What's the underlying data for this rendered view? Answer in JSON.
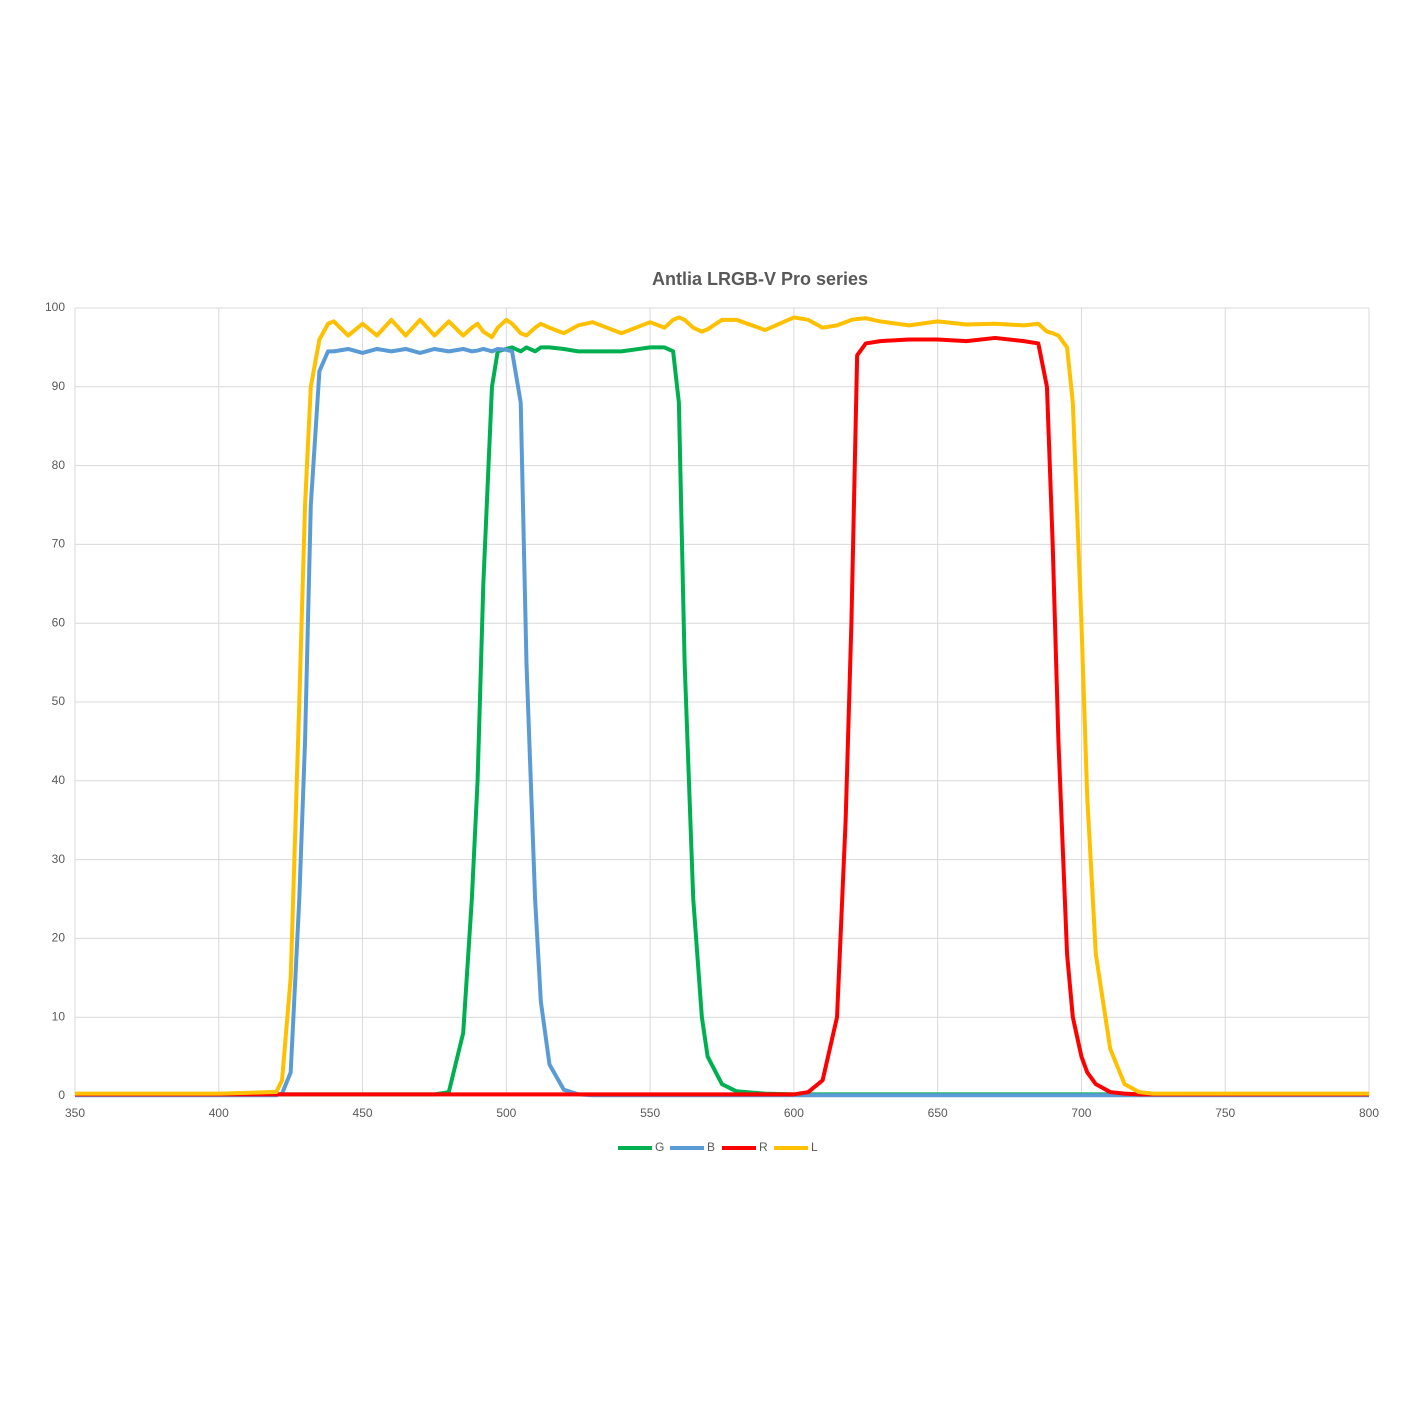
{
  "chart_data": {
    "type": "line",
    "title": "Antlia LRGB-V Pro series",
    "x": [
      350,
      400,
      420,
      422,
      425,
      428,
      430,
      432,
      435,
      438,
      440,
      445,
      450,
      455,
      460,
      465,
      470,
      475,
      480,
      485,
      488,
      490,
      492,
      495,
      497,
      500,
      502,
      505,
      507,
      510,
      512,
      515,
      520,
      525,
      530,
      540,
      550,
      555,
      558,
      560,
      562,
      565,
      568,
      570,
      575,
      580,
      590,
      600,
      605,
      610,
      615,
      618,
      620,
      622,
      625,
      630,
      640,
      650,
      660,
      670,
      680,
      685,
      688,
      690,
      692,
      695,
      697,
      700,
      702,
      705,
      710,
      715,
      720,
      725,
      730,
      750,
      800
    ],
    "series": [
      {
        "name": "G",
        "color": "#00b050",
        "values": [
          0.2,
          0.2,
          0.2,
          0.2,
          0.2,
          0.2,
          0.2,
          0.2,
          0.2,
          0.2,
          0.2,
          0.2,
          0.2,
          0.2,
          0.2,
          0.2,
          0.2,
          0.2,
          0.5,
          8,
          25,
          40,
          65,
          90,
          94.5,
          94.8,
          95,
          94.5,
          95,
          94.5,
          95,
          95,
          94.8,
          94.5,
          94.5,
          94.5,
          95,
          95,
          94.5,
          88,
          55,
          25,
          10,
          5,
          1.5,
          0.6,
          0.3,
          0.2,
          0.2,
          0.2,
          0.2,
          0.2,
          0.2,
          0.2,
          0.2,
          0.2,
          0.2,
          0.2,
          0.2,
          0.2,
          0.2,
          0.2,
          0.2,
          0.2,
          0.2,
          0.2,
          0.2,
          0.2,
          0.2,
          0.2,
          0.2,
          0.2,
          0.2,
          0.2,
          0.2,
          0.2,
          0.2
        ]
      },
      {
        "name": "B",
        "color": "#5b9bd5",
        "values": [
          0.1,
          0.1,
          0.1,
          0.3,
          3,
          25,
          45,
          75,
          92,
          94.5,
          94.5,
          94.8,
          94.3,
          94.8,
          94.5,
          94.8,
          94.3,
          94.8,
          94.5,
          94.8,
          94.5,
          94.6,
          94.8,
          94.5,
          94.8,
          94.7,
          94.5,
          88,
          55,
          25,
          12,
          4,
          0.8,
          0.2,
          0.1,
          0.1,
          0.1,
          0.1,
          0.1,
          0.1,
          0.1,
          0.1,
          0.1,
          0.1,
          0.1,
          0.1,
          0.1,
          0.1,
          0.1,
          0.1,
          0.1,
          0.1,
          0.1,
          0.1,
          0.1,
          0.1,
          0.1,
          0.1,
          0.1,
          0.1,
          0.1,
          0.1,
          0.1,
          0.1,
          0.1,
          0.1,
          0.1,
          0.1,
          0.1,
          0.1,
          0.1,
          0.1,
          0.1,
          0.1,
          0.1,
          0.1,
          0.1
        ]
      },
      {
        "name": "R",
        "color": "#ff0000",
        "values": [
          0.2,
          0.2,
          0.2,
          0.2,
          0.2,
          0.2,
          0.2,
          0.2,
          0.2,
          0.2,
          0.2,
          0.2,
          0.2,
          0.2,
          0.2,
          0.2,
          0.2,
          0.2,
          0.2,
          0.2,
          0.2,
          0.2,
          0.2,
          0.2,
          0.2,
          0.2,
          0.2,
          0.2,
          0.2,
          0.2,
          0.2,
          0.2,
          0.2,
          0.2,
          0.2,
          0.2,
          0.2,
          0.2,
          0.2,
          0.2,
          0.2,
          0.2,
          0.2,
          0.2,
          0.2,
          0.2,
          0.2,
          0.2,
          0.5,
          2,
          10,
          35,
          60,
          94,
          95.5,
          95.8,
          96,
          96,
          95.8,
          96.2,
          95.8,
          95.5,
          90,
          70,
          45,
          18,
          10,
          5,
          3,
          1.5,
          0.5,
          0.3,
          0.2,
          0.2,
          0.2,
          0.2,
          0.2
        ]
      },
      {
        "name": "L",
        "color": "#ffc000",
        "values": [
          0.3,
          0.3,
          0.5,
          2,
          15,
          50,
          75,
          90,
          96,
          98,
          98.3,
          96.5,
          98,
          96.5,
          98.5,
          96.5,
          98.5,
          96.5,
          98.3,
          96.5,
          97.5,
          98,
          97,
          96.3,
          97.5,
          98.5,
          98,
          96.8,
          96.5,
          97.5,
          98,
          97.5,
          96.8,
          97.8,
          98.2,
          96.8,
          98.2,
          97.5,
          98.5,
          98.8,
          98.5,
          97.5,
          97,
          97.3,
          98.5,
          98.5,
          97.2,
          98.8,
          98.5,
          97.5,
          97.8,
          98.2,
          98.5,
          98.6,
          98.7,
          98.3,
          97.8,
          98.3,
          97.9,
          98,
          97.8,
          98,
          97,
          96.8,
          96.5,
          95,
          88,
          60,
          38,
          18,
          6,
          1.5,
          0.5,
          0.3,
          0.3,
          0.3,
          0.3
        ]
      }
    ],
    "xlim": [
      350,
      800
    ],
    "xticks": [
      350,
      400,
      450,
      500,
      550,
      600,
      650,
      700,
      750,
      800
    ],
    "ylim": [
      0,
      100
    ],
    "yticks": [
      0,
      10,
      20,
      30,
      40,
      50,
      60,
      70,
      80,
      90,
      100
    ],
    "grid": true,
    "legend": "bottom"
  }
}
